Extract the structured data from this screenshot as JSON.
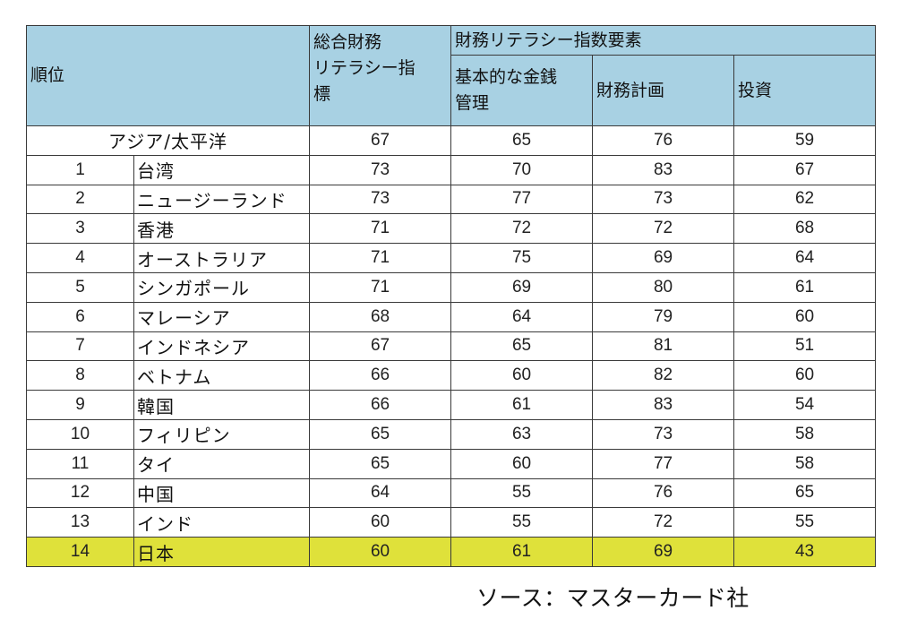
{
  "header": {
    "rank": "順位",
    "overall_line1": "総合財務",
    "overall_line2": "リテラシー指",
    "overall_line3": "標",
    "components": "財務リテラシー指数要素",
    "basic_line1": "基本的な金銭",
    "basic_line2": "管理",
    "planning": "財務計画",
    "investment": "投資"
  },
  "region_row": {
    "label": "アジア/太平洋",
    "overall": "67",
    "basic": "65",
    "planning": "76",
    "investment": "59"
  },
  "rows": [
    {
      "rank": "1",
      "country": "台湾",
      "overall": "73",
      "basic": "70",
      "planning": "83",
      "investment": "67"
    },
    {
      "rank": "2",
      "country": "ニュージーランド",
      "overall": "73",
      "basic": "77",
      "planning": "73",
      "investment": "62"
    },
    {
      "rank": "3",
      "country": "香港",
      "overall": "71",
      "basic": "72",
      "planning": "72",
      "investment": "68"
    },
    {
      "rank": "4",
      "country": "オーストラリア",
      "overall": "71",
      "basic": "75",
      "planning": "69",
      "investment": "64"
    },
    {
      "rank": "5",
      "country": "シンガポール",
      "overall": "71",
      "basic": "69",
      "planning": "80",
      "investment": "61"
    },
    {
      "rank": "6",
      "country": "マレーシア",
      "overall": "68",
      "basic": "64",
      "planning": "79",
      "investment": "60"
    },
    {
      "rank": "7",
      "country": "インドネシア",
      "overall": "67",
      "basic": "65",
      "planning": "81",
      "investment": "51"
    },
    {
      "rank": "8",
      "country": "ベトナム",
      "overall": "66",
      "basic": "60",
      "planning": "82",
      "investment": "60"
    },
    {
      "rank": "9",
      "country": "韓国",
      "overall": "66",
      "basic": "61",
      "planning": "83",
      "investment": "54"
    },
    {
      "rank": "10",
      "country": "フィリピン",
      "overall": "65",
      "basic": "63",
      "planning": "73",
      "investment": "58"
    },
    {
      "rank": "11",
      "country": "タイ",
      "overall": "65",
      "basic": "60",
      "planning": "77",
      "investment": "58"
    },
    {
      "rank": "12",
      "country": "中国",
      "overall": "64",
      "basic": "55",
      "planning": "76",
      "investment": "65"
    },
    {
      "rank": "13",
      "country": "インド",
      "overall": "60",
      "basic": "55",
      "planning": "72",
      "investment": "55"
    },
    {
      "rank": "14",
      "country": "日本",
      "overall": "60",
      "basic": "61",
      "planning": "69",
      "investment": "43",
      "highlight": true
    }
  ],
  "source": "ソース：マスターカード社",
  "colors": {
    "header_bg": "#a8d1e3",
    "highlight_bg": "#dfe13a",
    "border": "#3a3a3a"
  }
}
